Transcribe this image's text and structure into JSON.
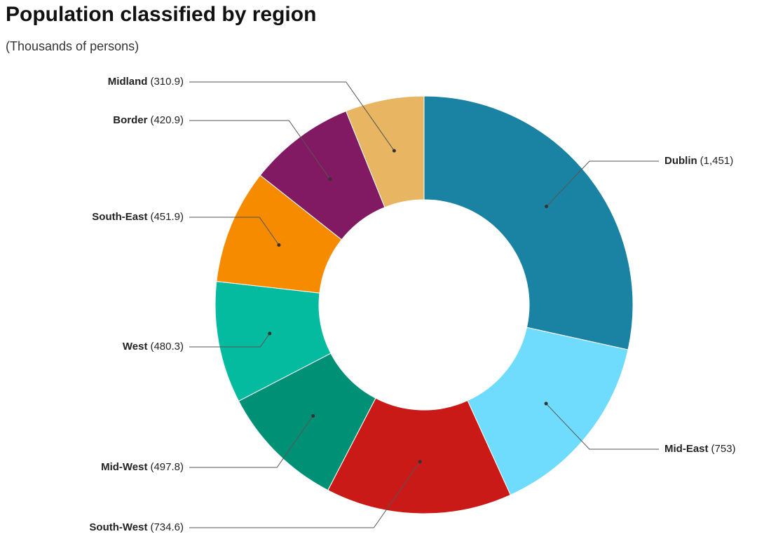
{
  "chart_data": {
    "type": "donut",
    "title": "Population classified by region",
    "subtitle": "(Thousands of persons)",
    "categories": [
      "Dublin",
      "Mid-East",
      "South-West",
      "Mid-West",
      "West",
      "South-East",
      "Border",
      "Midland"
    ],
    "values": [
      1451,
      753,
      734.6,
      497.8,
      480.3,
      451.9,
      420.9,
      310.9
    ],
    "value_labels": [
      "(1,451)",
      "(753)",
      "(734.6)",
      "(497.8)",
      "(480.3)",
      "(451.9)",
      "(420.9)",
      "(310.9)"
    ],
    "colors": [
      "#1a83a3",
      "#6fdcfd",
      "#c91a17",
      "#009076",
      "#04bba0",
      "#f78b00",
      "#821a63",
      "#e8b562"
    ]
  }
}
